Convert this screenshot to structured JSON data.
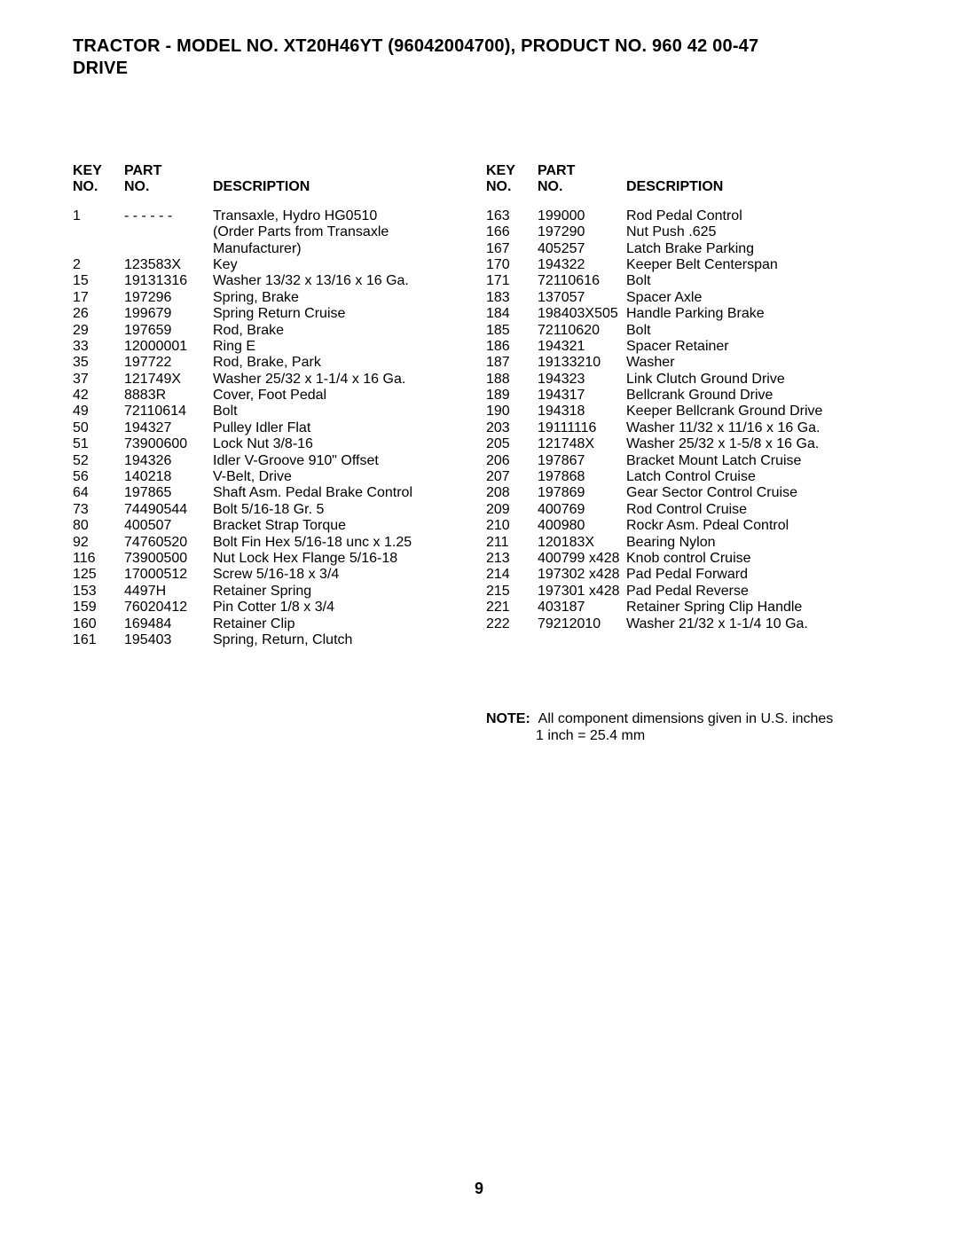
{
  "title_line1": "TRACTOR - MODEL NO. XT20H46YT (96042004700), PRODUCT NO. 960 42 00-47",
  "title_line2": "DRIVE",
  "headers": {
    "key_top": "KEY",
    "key_bot": "NO.",
    "part_top": "PART",
    "part_bot": "NO.",
    "desc": "DESCRIPTION"
  },
  "left": [
    {
      "k": "1",
      "p": "- - - - - -",
      "d": "Transaxle, Hydro HG0510"
    },
    {
      "k": "",
      "p": "",
      "d": "(Order Parts from Transaxle"
    },
    {
      "k": "",
      "p": "",
      "d": "Manufacturer)"
    },
    {
      "k": "2",
      "p": "123583X",
      "d": "Key"
    },
    {
      "k": "15",
      "p": "19131316",
      "d": "Washer 13/32 x 13/16 x 16 Ga."
    },
    {
      "k": "17",
      "p": "197296",
      "d": "Spring, Brake"
    },
    {
      "k": "26",
      "p": "199679",
      "d": "Spring Return Cruise"
    },
    {
      "k": "29",
      "p": "197659",
      "d": "Rod, Brake"
    },
    {
      "k": "33",
      "p": "12000001",
      "d": "Ring E"
    },
    {
      "k": "35",
      "p": "197722",
      "d": "Rod, Brake, Park"
    },
    {
      "k": "37",
      "p": "121749X",
      "d": "Washer 25/32 x 1-1/4 x 16 Ga."
    },
    {
      "k": "42",
      "p": "8883R",
      "d": "Cover, Foot Pedal"
    },
    {
      "k": "49",
      "p": "72110614",
      "d": "Bolt"
    },
    {
      "k": "50",
      "p": "194327",
      "d": "Pulley Idler Flat"
    },
    {
      "k": "51",
      "p": "73900600",
      "d": "Lock Nut 3/8-16"
    },
    {
      "k": "52",
      "p": "194326",
      "d": "Idler V-Groove 910\" Offset"
    },
    {
      "k": "56",
      "p": "140218",
      "d": "V-Belt, Drive"
    },
    {
      "k": "64",
      "p": "197865",
      "d": "Shaft Asm. Pedal Brake Control"
    },
    {
      "k": "73",
      "p": "74490544",
      "d": "Bolt 5/16-18 Gr. 5"
    },
    {
      "k": "80",
      "p": "400507",
      "d": "Bracket Strap Torque"
    },
    {
      "k": "92",
      "p": "74760520",
      "d": "Bolt Fin Hex 5/16-18 unc x 1.25"
    },
    {
      "k": "116",
      "p": "73900500",
      "d": "Nut Lock Hex Flange 5/16-18"
    },
    {
      "k": "125",
      "p": "17000512",
      "d": "Screw 5/16-18 x 3/4"
    },
    {
      "k": "153",
      "p": "4497H",
      "d": "Retainer Spring"
    },
    {
      "k": "159",
      "p": "76020412",
      "d": "Pin Cotter 1/8 x 3/4"
    },
    {
      "k": "160",
      "p": "169484",
      "d": "Retainer Clip"
    },
    {
      "k": "161",
      "p": "195403",
      "d": "Spring, Return, Clutch"
    }
  ],
  "right": [
    {
      "k": "163",
      "p": "199000",
      "d": "Rod Pedal Control"
    },
    {
      "k": "166",
      "p": "197290",
      "d": "Nut Push .625"
    },
    {
      "k": "167",
      "p": "405257",
      "d": "Latch Brake Parking"
    },
    {
      "k": "170",
      "p": "194322",
      "d": "Keeper Belt Centerspan"
    },
    {
      "k": "171",
      "p": "72110616",
      "d": "Bolt"
    },
    {
      "k": "183",
      "p": "137057",
      "d": "Spacer Axle"
    },
    {
      "k": "184",
      "p": "198403X505",
      "d": "Handle Parking Brake"
    },
    {
      "k": "185",
      "p": "72110620",
      "d": "Bolt"
    },
    {
      "k": "186",
      "p": "194321",
      "d": "Spacer Retainer"
    },
    {
      "k": "187",
      "p": "19133210",
      "d": "Washer"
    },
    {
      "k": "188",
      "p": "194323",
      "d": "Link Clutch Ground Drive"
    },
    {
      "k": "189",
      "p": "194317",
      "d": "Bellcrank Ground Drive"
    },
    {
      "k": "190",
      "p": "194318",
      "d": "Keeper Bellcrank Ground Drive"
    },
    {
      "k": "203",
      "p": "19111116",
      "d": "Washer 11/32 x 11/16 x 16 Ga."
    },
    {
      "k": "205",
      "p": "121748X",
      "d": "Washer 25/32 x 1-5/8 x 16 Ga."
    },
    {
      "k": "206",
      "p": "197867",
      "d": "Bracket Mount Latch Cruise"
    },
    {
      "k": "207",
      "p": "197868",
      "d": "Latch Control Cruise"
    },
    {
      "k": "208",
      "p": "197869",
      "d": "Gear Sector Control Cruise"
    },
    {
      "k": "209",
      "p": "400769",
      "d": "Rod Control Cruise"
    },
    {
      "k": "210",
      "p": "400980",
      "d": "Rockr Asm. Pdeal Control"
    },
    {
      "k": "211",
      "p": "120183X",
      "d": "Bearing Nylon"
    },
    {
      "k": "213",
      "p": "400799 x428",
      "d": "Knob control Cruise"
    },
    {
      "k": "214",
      "p": "197302 x428",
      "d": "Pad Pedal Forward"
    },
    {
      "k": "215",
      "p": "197301 x428",
      "d": "Pad Pedal Reverse"
    },
    {
      "k": "221",
      "p": "403187",
      "d": "Retainer Spring Clip Handle"
    },
    {
      "k": "222",
      "p": "79212010",
      "d": "Washer 21/32 x 1-1/4 10 Ga."
    }
  ],
  "note_label": "NOTE:",
  "note_text1": "All component dimensions given in U.S. inches",
  "note_text2": "1 inch = 25.4 mm",
  "page_number": "9"
}
